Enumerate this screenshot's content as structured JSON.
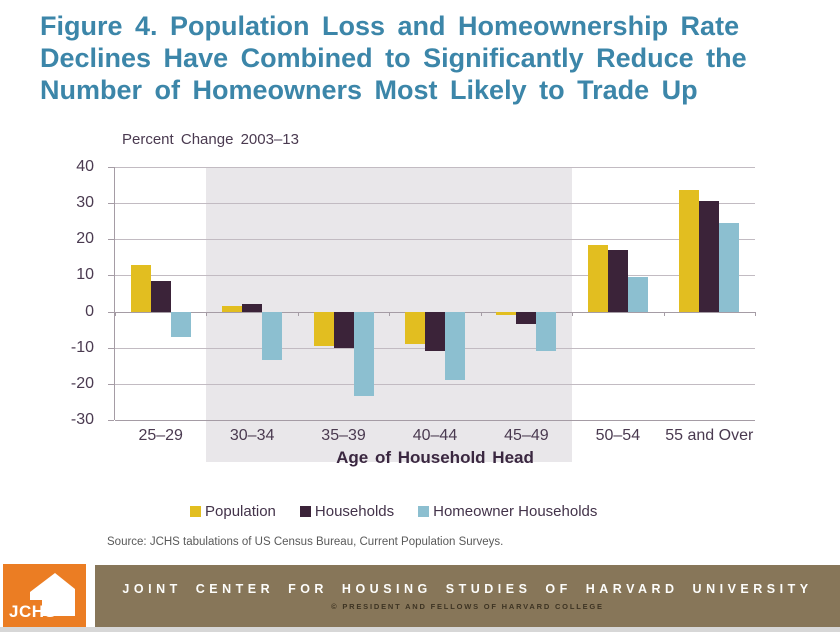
{
  "title": {
    "lines": [
      "Figure 4. Population Loss and Homeownership Rate",
      "Declines Have Combined to Significantly Reduce the",
      "Number of Homeowners Most Likely to Trade Up"
    ]
  },
  "chart": {
    "plot_label": "Percent Change 2003–13",
    "x_axis_title": "Age of Household Head"
  },
  "chart_data": {
    "type": "bar",
    "title": "Percent Change 2003–13",
    "categories": [
      "25–29",
      "30–34",
      "35–39",
      "40–44",
      "45–49",
      "50–54",
      "55 and Over"
    ],
    "series": [
      {
        "name": "Population",
        "color": "#E2BE20",
        "values": [
          13,
          1.5,
          -9.5,
          -9,
          -1,
          18.5,
          33.5
        ]
      },
      {
        "name": "Households",
        "color": "#3B2339",
        "values": [
          8.5,
          2,
          -10,
          -11,
          -3.5,
          17,
          30.5
        ]
      },
      {
        "name": "Homeowner Households",
        "color": "#8CBFD0",
        "values": [
          -7,
          -13.5,
          -23.5,
          -19,
          -11,
          9.5,
          24.5
        ]
      }
    ],
    "xlabel": "Age of Household Head",
    "ylabel": "Percent Change 2003–13",
    "ylim": [
      -30,
      40
    ],
    "ytick_step": 10,
    "grid": true,
    "legend_position": "bottom",
    "shaded_category_range": [
      "30–34",
      "45–49"
    ]
  },
  "source_note": "Source: JCHS tabulations of US Census Bureau, Current Population Surveys.",
  "footer": {
    "logo_text": "JCHS",
    "org_name": "JOINT CENTER FOR HOUSING STUDIES OF HARVARD UNIVERSITY",
    "copyright": "© PRESIDENT AND FELLOWS OF HARVARD COLLEGE"
  },
  "colors": {
    "title_teal": "#3C86A9",
    "population_yellow": "#E2BE20",
    "households_dark": "#3B2339",
    "homeowner_blue": "#8CBFD0",
    "shaded_band": "#E9E7EA",
    "footer_brown": "#877659",
    "logo_orange": "#EB7D23"
  }
}
